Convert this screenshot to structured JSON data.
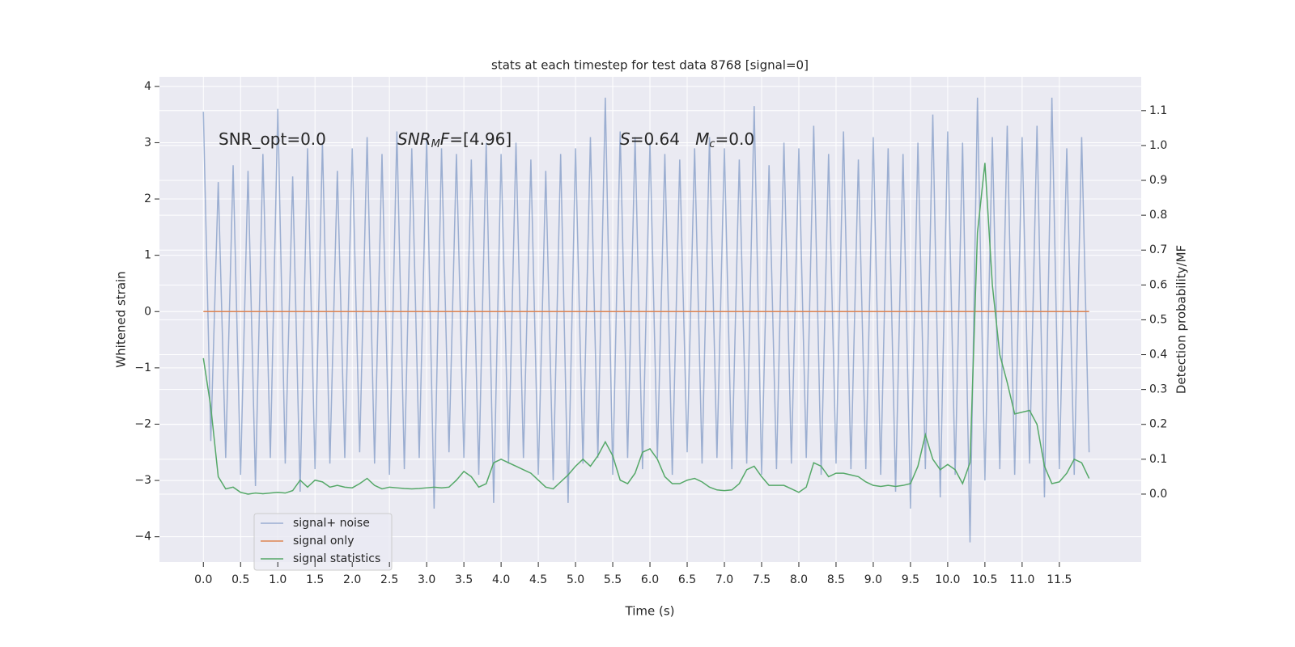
{
  "chart_data": {
    "type": "line",
    "title": "stats at each timestep for test data 8768 [signal=0]",
    "xlabel": "Time (s)",
    "ylabel": "Whitened strain",
    "y2label": "Detection probability/MF",
    "xlim": [
      -0.59,
      12.6
    ],
    "ylim": [
      -4.45,
      4.17
    ],
    "y2lim": [
      -0.195,
      1.197
    ],
    "grid": true,
    "legend": "lower left",
    "xticks": [
      {
        "value": 0,
        "label": "0.0"
      },
      {
        "value": 0.5,
        "label": "0.5"
      },
      {
        "value": 1,
        "label": "1.0"
      },
      {
        "value": 1.5,
        "label": "1.5"
      },
      {
        "value": 2,
        "label": "2.0"
      },
      {
        "value": 2.5,
        "label": "2.5"
      },
      {
        "value": 3,
        "label": "3.0"
      },
      {
        "value": 3.5,
        "label": "3.5"
      },
      {
        "value": 4,
        "label": "4.0"
      },
      {
        "value": 4.5,
        "label": "4.5"
      },
      {
        "value": 5,
        "label": "5.0"
      },
      {
        "value": 5.5,
        "label": "5.5"
      },
      {
        "value": 6,
        "label": "6.0"
      },
      {
        "value": 6.5,
        "label": "6.5"
      },
      {
        "value": 7,
        "label": "7.0"
      },
      {
        "value": 7.5,
        "label": "7.5"
      },
      {
        "value": 8,
        "label": "8.0"
      },
      {
        "value": 8.5,
        "label": "8.5"
      },
      {
        "value": 9,
        "label": "9.0"
      },
      {
        "value": 9.5,
        "label": "9.5"
      },
      {
        "value": 10,
        "label": "10.0"
      },
      {
        "value": 10.5,
        "label": "10.5"
      },
      {
        "value": 11,
        "label": "11.0"
      },
      {
        "value": 11.5,
        "label": "11.5"
      }
    ],
    "yticks": [
      {
        "value": -4,
        "label": "−4"
      },
      {
        "value": -3,
        "label": "−3"
      },
      {
        "value": -2,
        "label": "−2"
      },
      {
        "value": -1,
        "label": "−1"
      },
      0,
      1,
      2,
      3,
      4
    ],
    "y2ticks": [
      {
        "value": 0,
        "label": "0.0"
      },
      {
        "value": 0.1,
        "label": "0.1"
      },
      {
        "value": 0.2,
        "label": "0.2"
      },
      {
        "value": 0.3,
        "label": "0.3"
      },
      {
        "value": 0.4,
        "label": "0.4"
      },
      {
        "value": 0.5,
        "label": "0.5"
      },
      {
        "value": 0.6,
        "label": "0.6"
      },
      {
        "value": 0.7,
        "label": "0.7"
      },
      {
        "value": 0.8,
        "label": "0.8"
      },
      {
        "value": 0.9,
        "label": "0.9"
      },
      {
        "value": 1,
        "label": "1.0"
      },
      {
        "value": 1.1,
        "label": "1.1"
      }
    ],
    "annotations": [
      [
        {
          "text": "SNR_opt=0.0"
        }
      ],
      [
        {
          "text": "SNR",
          "italic": true
        },
        {
          "text": "M",
          "italic": true,
          "sub": true
        },
        {
          "text": "F",
          "italic": true
        },
        {
          "text": "=[4.96]"
        }
      ],
      [
        {
          "text": "S",
          "italic": true
        },
        {
          "text": "=0.64   "
        },
        {
          "text": "M",
          "italic": true
        },
        {
          "text": "c",
          "italic": true,
          "sub": true
        },
        {
          "text": "=0.0"
        }
      ]
    ],
    "series": [
      {
        "name": "signal+ noise",
        "color": "#4c72b0",
        "opacity": 0.5,
        "x": [
          0,
          0.1,
          0.2,
          0.3,
          0.4,
          0.5,
          0.6,
          0.7,
          0.8,
          0.9,
          1,
          1.1,
          1.2,
          1.3,
          1.4,
          1.5,
          1.6,
          1.7,
          1.8,
          1.9,
          2,
          2.1,
          2.2,
          2.3,
          2.4,
          2.5,
          2.6,
          2.7,
          2.8,
          2.9,
          3,
          3.1,
          3.2,
          3.3,
          3.4,
          3.5,
          3.6,
          3.7,
          3.8,
          3.9,
          4,
          4.1,
          4.2,
          4.3,
          4.4,
          4.5,
          4.6,
          4.7,
          4.8,
          4.9,
          5,
          5.1,
          5.2,
          5.3,
          5.4,
          5.5,
          5.6,
          5.7,
          5.8,
          5.9,
          6,
          6.1,
          6.2,
          6.3,
          6.4,
          6.5,
          6.6,
          6.7,
          6.8,
          6.9,
          7,
          7.1,
          7.2,
          7.3,
          7.4,
          7.5,
          7.6,
          7.7,
          7.8,
          7.9,
          8,
          8.1,
          8.2,
          8.3,
          8.4,
          8.5,
          8.6,
          8.7,
          8.8,
          8.9,
          9,
          9.1,
          9.2,
          9.3,
          9.4,
          9.5,
          9.6,
          9.7,
          9.8,
          9.9,
          10,
          10.1,
          10.2,
          10.3,
          10.4,
          10.5,
          10.6,
          10.7,
          10.8,
          10.9,
          11,
          11.1,
          11.2,
          11.3,
          11.4,
          11.5,
          11.6,
          11.7,
          11.8,
          11.9
        ],
        "values": [
          3.55,
          -2.3,
          2.3,
          -2.6,
          2.6,
          -2.9,
          2.5,
          -3.1,
          2.8,
          -2.6,
          3.6,
          -2.7,
          2.4,
          -3.2,
          2.9,
          -2.8,
          3.0,
          -2.7,
          2.5,
          -2.6,
          2.9,
          -2.5,
          3.1,
          -2.7,
          2.8,
          -2.9,
          3.2,
          -2.8,
          2.9,
          -2.6,
          3.1,
          -3.5,
          2.9,
          -2.5,
          2.8,
          -2.6,
          2.7,
          -2.9,
          3.0,
          -3.4,
          2.8,
          -2.7,
          3.0,
          -2.6,
          2.7,
          -2.9,
          2.5,
          -3.0,
          2.8,
          -3.4,
          2.9,
          -2.7,
          3.1,
          -2.6,
          3.8,
          -2.9,
          3.2,
          -2.6,
          3.1,
          -2.8,
          3.0,
          -2.6,
          2.8,
          -2.9,
          2.7,
          -2.5,
          2.9,
          -2.7,
          3.1,
          -2.6,
          2.9,
          -2.8,
          2.7,
          -2.7,
          3.65,
          -2.9,
          2.6,
          -2.8,
          3.0,
          -2.7,
          2.9,
          -2.6,
          3.3,
          -2.9,
          2.8,
          -2.7,
          3.2,
          -2.8,
          2.7,
          -2.8,
          3.1,
          -2.9,
          2.9,
          -3.2,
          2.8,
          -3.5,
          3.0,
          -2.8,
          3.5,
          -3.3,
          3.2,
          -2.9,
          3.0,
          -4.1,
          3.8,
          -3.0,
          3.1,
          -2.8,
          3.3,
          -2.9,
          3.1,
          -2.7,
          3.3,
          -3.3,
          3.8,
          -2.8,
          2.9,
          -2.9,
          3.1,
          -2.5
        ]
      },
      {
        "name": "signal only",
        "color": "#dd8452",
        "x": [
          0,
          11.9
        ],
        "values": [
          0,
          0
        ]
      },
      {
        "name": "signal statistics",
        "color": "#55a868",
        "axis": "y2",
        "x": [
          0,
          0.1,
          0.2,
          0.3,
          0.4,
          0.5,
          0.6,
          0.7,
          0.8,
          0.9,
          1,
          1.1,
          1.2,
          1.3,
          1.4,
          1.5,
          1.6,
          1.7,
          1.8,
          1.9,
          2,
          2.1,
          2.2,
          2.3,
          2.4,
          2.5,
          2.6,
          2.7,
          2.8,
          2.9,
          3,
          3.1,
          3.2,
          3.3,
          3.4,
          3.5,
          3.6,
          3.7,
          3.8,
          3.9,
          4,
          4.1,
          4.2,
          4.3,
          4.4,
          4.5,
          4.6,
          4.7,
          4.8,
          4.9,
          5,
          5.1,
          5.2,
          5.3,
          5.4,
          5.5,
          5.6,
          5.7,
          5.8,
          5.9,
          6,
          6.1,
          6.2,
          6.3,
          6.4,
          6.5,
          6.6,
          6.7,
          6.8,
          6.9,
          7,
          7.1,
          7.2,
          7.3,
          7.4,
          7.5,
          7.6,
          7.7,
          7.8,
          7.9,
          8,
          8.1,
          8.2,
          8.3,
          8.4,
          8.5,
          8.6,
          8.7,
          8.8,
          8.9,
          9,
          9.1,
          9.2,
          9.3,
          9.4,
          9.5,
          9.6,
          9.7,
          9.8,
          9.9,
          10,
          10.1,
          10.2,
          10.3,
          10.4,
          10.5,
          10.6,
          10.7,
          10.8,
          10.9,
          11,
          11.1,
          11.2,
          11.3,
          11.4,
          11.5,
          11.6,
          11.7,
          11.8,
          11.9
        ],
        "values": [
          0.39,
          0.25,
          0.05,
          0.015,
          0.02,
          0.005,
          0.0,
          0.003,
          0.001,
          0.003,
          0.005,
          0.003,
          0.01,
          0.04,
          0.02,
          0.04,
          0.035,
          0.02,
          0.025,
          0.02,
          0.018,
          0.03,
          0.045,
          0.025,
          0.015,
          0.02,
          0.018,
          0.016,
          0.015,
          0.016,
          0.018,
          0.02,
          0.018,
          0.02,
          0.04,
          0.065,
          0.05,
          0.02,
          0.03,
          0.09,
          0.1,
          0.09,
          0.08,
          0.07,
          0.06,
          0.04,
          0.02,
          0.015,
          0.035,
          0.055,
          0.08,
          0.1,
          0.08,
          0.11,
          0.15,
          0.11,
          0.04,
          0.03,
          0.06,
          0.12,
          0.13,
          0.1,
          0.05,
          0.03,
          0.03,
          0.04,
          0.045,
          0.035,
          0.02,
          0.012,
          0.01,
          0.012,
          0.03,
          0.07,
          0.08,
          0.05,
          0.025,
          0.025,
          0.025,
          0.015,
          0.005,
          0.02,
          0.09,
          0.08,
          0.05,
          0.06,
          0.06,
          0.055,
          0.05,
          0.035,
          0.025,
          0.022,
          0.025,
          0.022,
          0.025,
          0.03,
          0.08,
          0.17,
          0.1,
          0.07,
          0.085,
          0.07,
          0.03,
          0.09,
          0.75,
          0.95,
          0.6,
          0.4,
          0.32,
          0.23,
          0.235,
          0.24,
          0.2,
          0.08,
          0.03,
          0.035,
          0.06,
          0.1,
          0.09,
          0.045
        ]
      }
    ]
  }
}
